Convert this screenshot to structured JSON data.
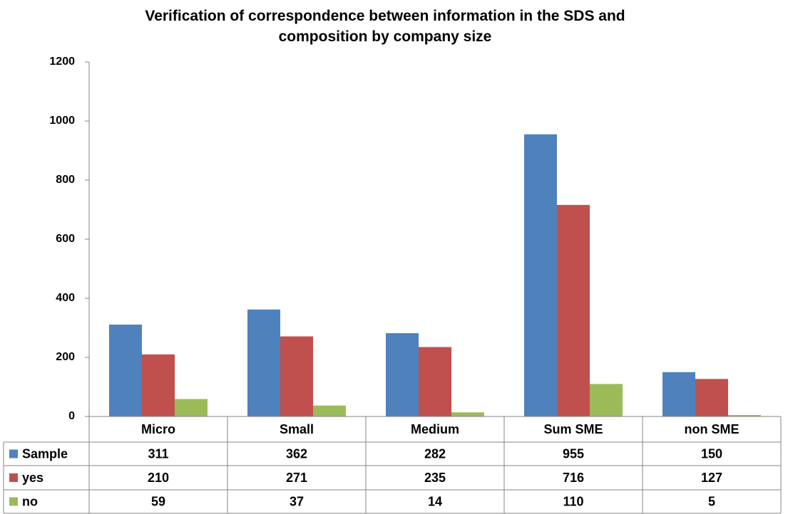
{
  "chart_data": {
    "type": "bar",
    "title": "Verification of correspondence between information in the SDS and composition by company size",
    "categories": [
      "Micro",
      "Small",
      "Medium",
      "Sum SME",
      "non SME"
    ],
    "series": [
      {
        "name": "Sample",
        "color": "#4f81bd",
        "values": [
          311,
          362,
          282,
          955,
          150
        ]
      },
      {
        "name": "yes",
        "color": "#c0504d",
        "values": [
          210,
          271,
          235,
          716,
          127
        ]
      },
      {
        "name": "no",
        "color": "#9bbb59",
        "values": [
          59,
          37,
          14,
          110,
          5
        ]
      }
    ],
    "ylim": [
      0,
      1200
    ],
    "yticks": [
      0,
      200,
      400,
      600,
      800,
      1000,
      1200
    ],
    "grid": false
  }
}
